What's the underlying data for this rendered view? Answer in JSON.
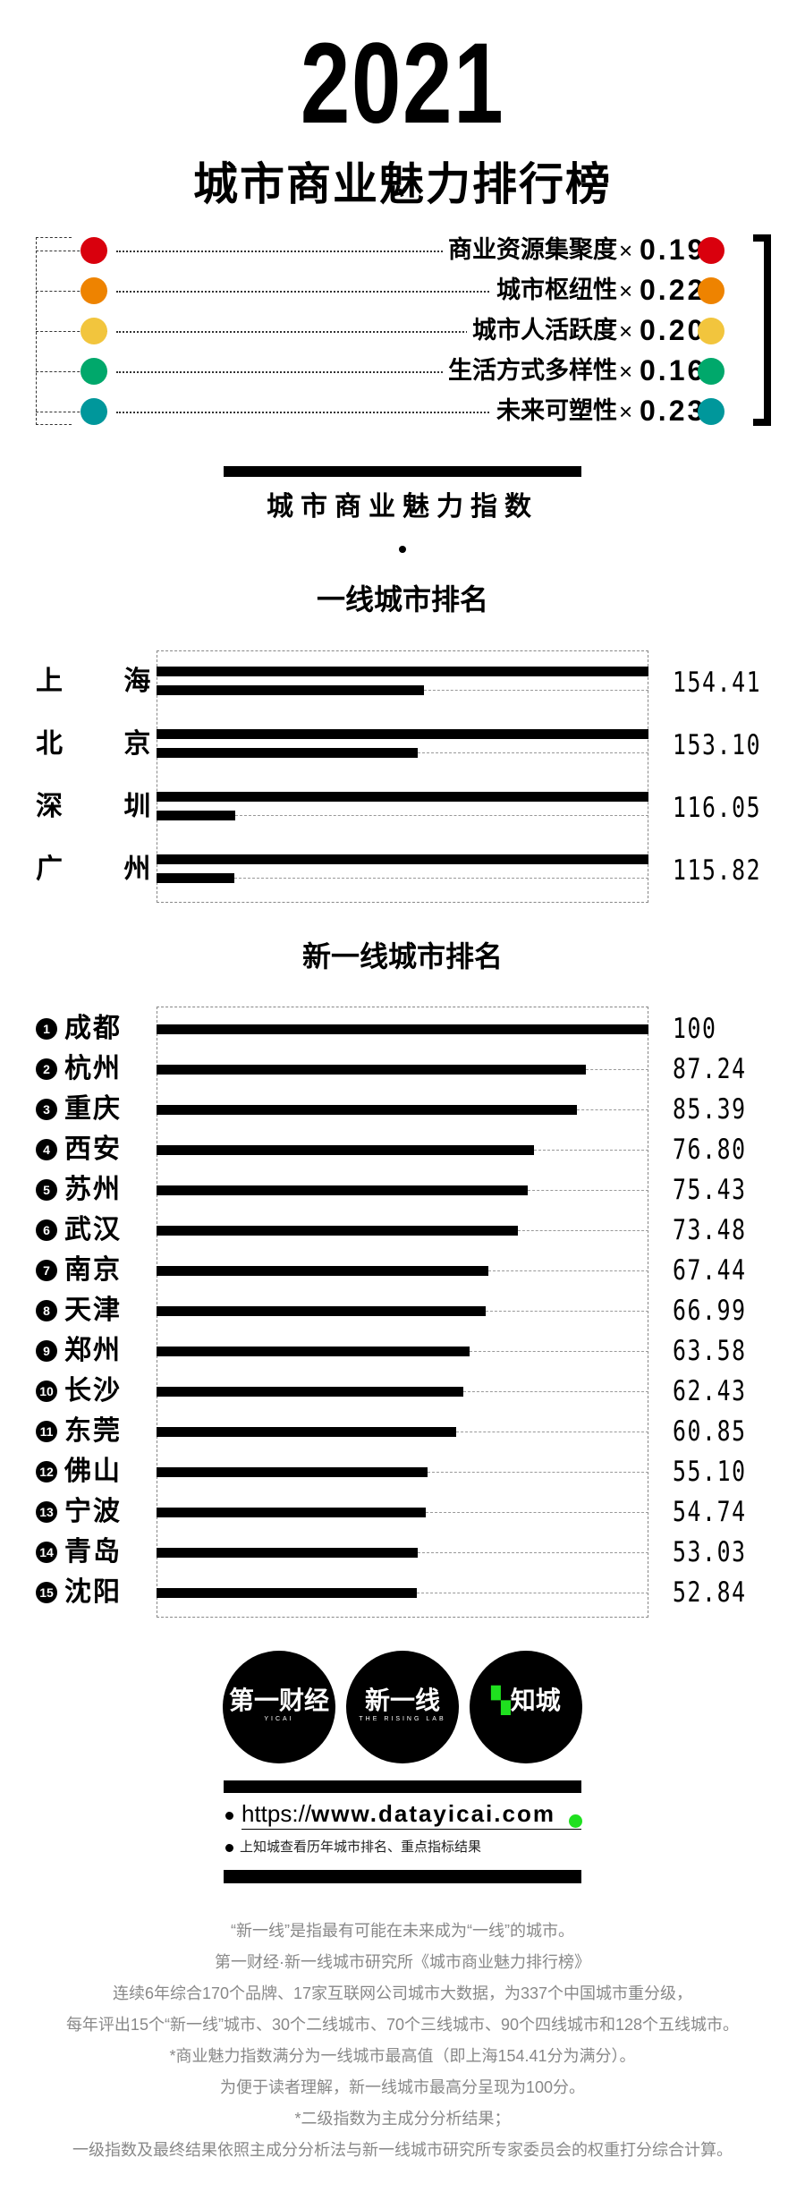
{
  "header": {
    "year": "2021",
    "title": "城市商业魅力排行榜"
  },
  "weights": [
    {
      "label": "商业资源集聚度",
      "times": "×",
      "value": "0.19",
      "color": "#d9000d"
    },
    {
      "label": "城市枢纽性",
      "times": "×",
      "value": "0.22",
      "color": "#ee8300"
    },
    {
      "label": "城市人活跃度",
      "times": "×",
      "value": "0.20",
      "color": "#f2c53d"
    },
    {
      "label": "生活方式多样性",
      "times": "×",
      "value": "0.16",
      "color": "#00a86b"
    },
    {
      "label": "未来可塑性",
      "times": "×",
      "value": "0.23",
      "color": "#00979b"
    }
  ],
  "index_title": "城市商业魅力指数",
  "chart_data": [
    {
      "type": "bar",
      "title": "一线城市排名",
      "categories": [
        "上 海",
        "北 京",
        "深 圳",
        "广 州"
      ],
      "values": [
        154.41,
        153.1,
        116.05,
        115.82
      ],
      "labels": [
        "154.41",
        "153.10",
        "116.05",
        "115.82"
      ],
      "xlim": [
        0,
        200
      ]
    },
    {
      "type": "bar",
      "title": "新一线城市排名",
      "categories": [
        "成都",
        "杭州",
        "重庆",
        "西安",
        "苏州",
        "武汉",
        "南京",
        "天津",
        "郑州",
        "长沙",
        "东莞",
        "佛山",
        "宁波",
        "青岛",
        "沈阳"
      ],
      "ranks": [
        "1",
        "2",
        "3",
        "4",
        "5",
        "6",
        "7",
        "8",
        "9",
        "10",
        "11",
        "12",
        "13",
        "14",
        "15"
      ],
      "values": [
        100,
        87.24,
        85.39,
        76.8,
        75.43,
        73.48,
        67.44,
        66.99,
        63.58,
        62.43,
        60.85,
        55.1,
        54.74,
        53.03,
        52.84
      ],
      "labels": [
        "100",
        "87.24",
        "85.39",
        "76.80",
        "75.43",
        "73.48",
        "67.44",
        "66.99",
        "63.58",
        "62.43",
        "60.85",
        "55.10",
        "54.74",
        "53.03",
        "52.84"
      ],
      "xlim": [
        0,
        100
      ]
    }
  ],
  "logos": [
    {
      "main": "第一财经",
      "sub": "YICAI"
    },
    {
      "main": "新一线",
      "sub": "THE RISING LAB"
    },
    {
      "main": "知城",
      "sub": ""
    }
  ],
  "link": {
    "prefix": "https://",
    "domain": "www.datayicai.com",
    "note": "上知城查看历年城市排名、重点指标结果",
    "accent": "#1fe01f"
  },
  "footer": [
    "“新一线”是指最有可能在未来成为“一线”的城市。",
    "第一财经·新一线城市研究所《城市商业魅力排行榜》",
    "连续6年综合170个品牌、17家互联网公司城市大数据，为337个中国城市重分级，",
    "每年评出15个“新一线”城市、30个二线城市、70个三线城市、90个四线城市和128个五线城市。",
    "*商业魅力指数满分为一线城市最高值（即上海154.41分为满分）。",
    "为便于读者理解，新一线城市最高分呈现为100分。",
    "*二级指数为主成分分析结果；",
    "一级指数及最终结果依照主成分分析法与新一线城市研究所专家委员会的权重打分综合计算。"
  ]
}
